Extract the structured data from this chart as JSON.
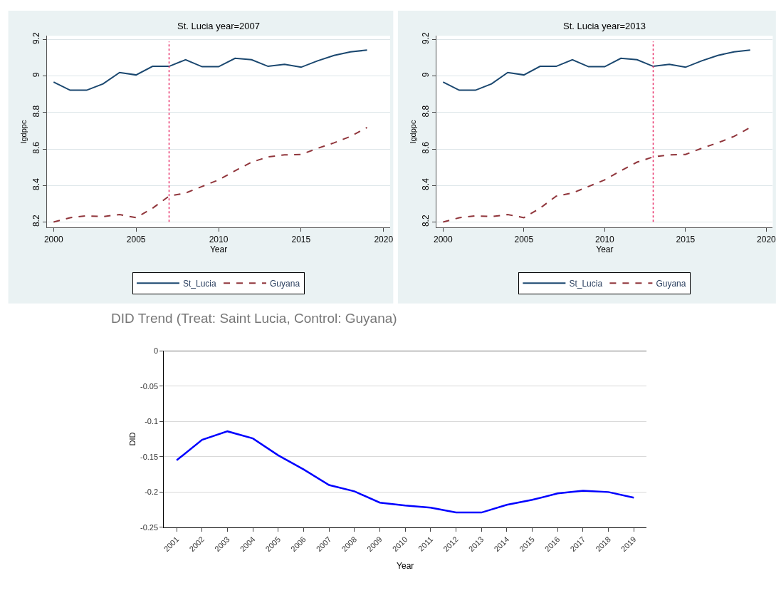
{
  "chart_data": [
    {
      "type": "line",
      "title": "St. Lucia year=2007",
      "xlabel": "Year",
      "ylabel": "lgdppc",
      "x": [
        2000,
        2001,
        2002,
        2003,
        2004,
        2005,
        2006,
        2007,
        2008,
        2009,
        2010,
        2011,
        2012,
        2013,
        2014,
        2015,
        2016,
        2017,
        2018,
        2019
      ],
      "series": [
        {
          "name": "St_Lucia",
          "color": "#1a476f",
          "line_style": "solid",
          "values": [
            8.967,
            8.922,
            8.922,
            8.957,
            9.019,
            9.006,
            9.053,
            9.053,
            9.089,
            9.051,
            9.051,
            9.097,
            9.089,
            9.053,
            9.064,
            9.048,
            9.083,
            9.113,
            9.132,
            9.142
          ]
        },
        {
          "name": "Guyana",
          "color": "#90353b",
          "line_style": "dashed",
          "values": [
            8.2,
            8.224,
            8.234,
            8.23,
            8.241,
            8.224,
            8.276,
            8.342,
            8.359,
            8.395,
            8.431,
            8.481,
            8.528,
            8.557,
            8.568,
            8.57,
            8.604,
            8.634,
            8.669,
            8.718
          ]
        }
      ],
      "xlim": [
        1999.6,
        2020.4
      ],
      "xticks": [
        2000,
        2005,
        2010,
        2015,
        2020
      ],
      "ylim": [
        8.17,
        9.22
      ],
      "yticks": [
        {
          "value": 8.2,
          "label": "8.2"
        },
        {
          "value": 8.4,
          "label": "8.4"
        },
        {
          "value": 8.6,
          "label": "8.6"
        },
        {
          "value": 8.8,
          "label": "8.8"
        },
        9,
        {
          "value": 9.2,
          "label": "9.2"
        }
      ],
      "ref_lines": [
        {
          "axis": "x",
          "value": 2007,
          "color": "#e8306a",
          "line_style": "dotted"
        }
      ],
      "grid": "y",
      "legend": "bottom"
    },
    {
      "type": "line",
      "title": "St. Lucia year=2013",
      "xlabel": "Year",
      "ylabel": "lgdppc",
      "x": [
        2000,
        2001,
        2002,
        2003,
        2004,
        2005,
        2006,
        2007,
        2008,
        2009,
        2010,
        2011,
        2012,
        2013,
        2014,
        2015,
        2016,
        2017,
        2018,
        2019
      ],
      "series": [
        {
          "name": "St_Lucia",
          "color": "#1a476f",
          "line_style": "solid",
          "values": [
            8.967,
            8.922,
            8.922,
            8.957,
            9.019,
            9.006,
            9.053,
            9.053,
            9.089,
            9.051,
            9.051,
            9.097,
            9.089,
            9.053,
            9.064,
            9.048,
            9.083,
            9.113,
            9.132,
            9.142
          ]
        },
        {
          "name": "Guyana",
          "color": "#90353b",
          "line_style": "dashed",
          "values": [
            8.2,
            8.224,
            8.234,
            8.23,
            8.241,
            8.224,
            8.276,
            8.342,
            8.359,
            8.395,
            8.431,
            8.481,
            8.528,
            8.557,
            8.568,
            8.57,
            8.604,
            8.634,
            8.669,
            8.718
          ]
        }
      ],
      "xlim": [
        1999.6,
        2020.4
      ],
      "xticks": [
        2000,
        2005,
        2010,
        2015,
        2020
      ],
      "ylim": [
        8.17,
        9.22
      ],
      "yticks": [
        {
          "value": 8.2,
          "label": "8.2"
        },
        {
          "value": 8.4,
          "label": "8.4"
        },
        {
          "value": 8.6,
          "label": "8.6"
        },
        {
          "value": 8.8,
          "label": "8.8"
        },
        9,
        {
          "value": 9.2,
          "label": "9.2"
        }
      ],
      "ref_lines": [
        {
          "axis": "x",
          "value": 2013,
          "color": "#e8306a",
          "line_style": "dotted"
        }
      ],
      "grid": "y",
      "legend": "bottom"
    },
    {
      "type": "line",
      "title": "DID Trend (Treat: Saint Lucia, Control: Guyana)",
      "xlabel": "Year",
      "ylabel": "DID",
      "categories": [
        "2001",
        "2002",
        "2003",
        "2004",
        "2005",
        "2006",
        "2007",
        "2008",
        "2009",
        "2010",
        "2011",
        "2012",
        "2013",
        "2014",
        "2015",
        "2016",
        "2017",
        "2018",
        "2019"
      ],
      "series": [
        {
          "color": "#0000ff",
          "values": [
            -0.155,
            -0.126,
            -0.114,
            -0.124,
            -0.148,
            -0.168,
            -0.19,
            -0.199,
            -0.215,
            -0.219,
            -0.222,
            -0.229,
            -0.229,
            -0.218,
            -0.211,
            -0.202,
            -0.198,
            -0.2,
            -0.208
          ]
        }
      ],
      "ylim": [
        -0.25,
        0
      ],
      "yticks": [
        -0.25,
        -0.2,
        -0.15,
        -0.1,
        -0.05,
        0
      ],
      "grid": "y"
    }
  ]
}
